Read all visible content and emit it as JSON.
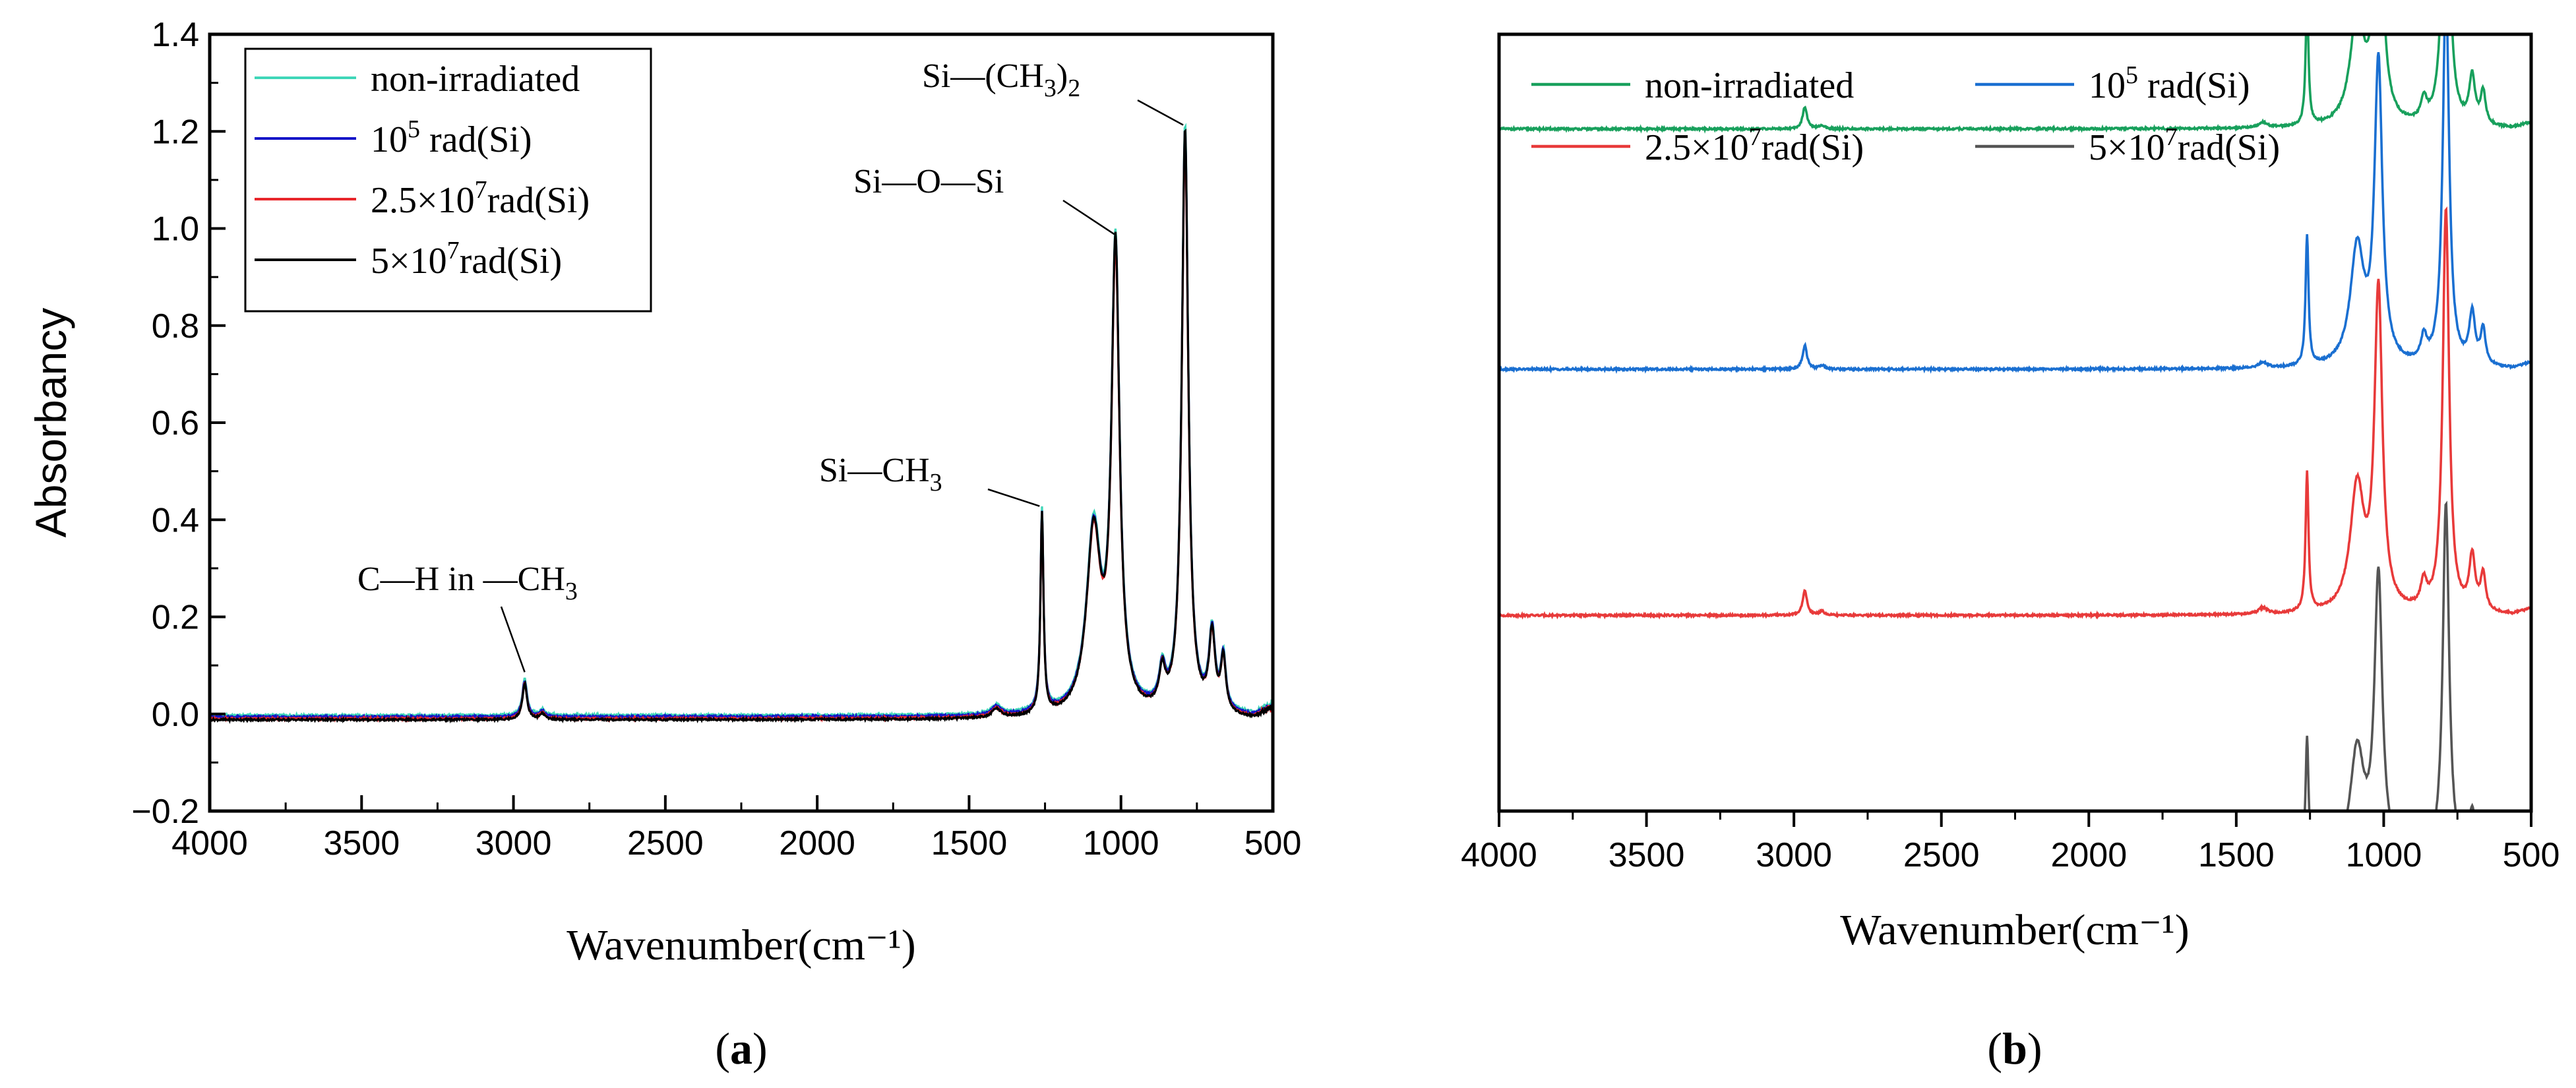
{
  "chart_data": [
    {
      "panel": "a",
      "type": "line",
      "ylabel": "Absorbancy",
      "xlabel": "Wavenumber(cm⁻¹)",
      "xlim": [
        4000,
        500
      ],
      "ylim": [
        -0.2,
        1.4
      ],
      "xticks": [
        4000,
        3500,
        3000,
        2500,
        2000,
        1500,
        1000,
        500
      ],
      "xtick_labels": [
        "4000",
        "3500",
        "3000",
        "2500",
        "2000",
        "1500",
        "1000",
        "500"
      ],
      "yticks": [
        -0.2,
        0.0,
        0.2,
        0.4,
        0.6,
        0.8,
        1.0,
        1.2,
        1.4
      ],
      "ytick_labels": [
        "−0.2",
        "0.0",
        "0.2",
        "0.4",
        "0.6",
        "0.8",
        "1.0",
        "1.2",
        "1.4"
      ],
      "legend_position": "top-left",
      "series": [
        {
          "name": "non-irradiated",
          "name_parts": [
            "non-irradiated",
            "",
            ""
          ],
          "color": "#3fd6b8",
          "baseline": -0.003,
          "scale": 1.0,
          "drift": 0.0
        },
        {
          "name": "10^5 rad(Si)",
          "name_parts": [
            "10",
            "5",
            " rad(Si)"
          ],
          "color": "#1515c8",
          "baseline": -0.006,
          "scale": 0.99,
          "drift": 0.0
        },
        {
          "name": "2.5×10^7rad(Si)",
          "name_parts": [
            "2.5×10",
            "7",
            "rad(Si)"
          ],
          "color": "#e8262b",
          "baseline": -0.01,
          "scale": 0.98,
          "drift": 0.0
        },
        {
          "name": "5×10^7rad(Si)",
          "name_parts": [
            "5×10",
            "7",
            "rad(Si)"
          ],
          "color": "#000000",
          "baseline": -0.012,
          "scale": 1.0,
          "drift": 0.0
        }
      ],
      "peaks": [
        {
          "center": 2963,
          "height": 0.075,
          "width": 9
        },
        {
          "center": 2905,
          "height": 0.012,
          "width": 10
        },
        {
          "center": 1410,
          "height": 0.018,
          "width": 18
        },
        {
          "center": 1260,
          "height": 0.415,
          "width": 6
        },
        {
          "center": 1090,
          "height": 0.37,
          "width": 28
        },
        {
          "center": 1018,
          "height": 0.95,
          "width": 16
        },
        {
          "center": 864,
          "height": 0.075,
          "width": 12
        },
        {
          "center": 789,
          "height": 1.205,
          "width": 13
        },
        {
          "center": 700,
          "height": 0.16,
          "width": 12
        },
        {
          "center": 663,
          "height": 0.11,
          "width": 10
        }
      ],
      "annotations": [
        {
          "text_parts": [
            "C—H in —CH",
            "3",
            ""
          ],
          "target": [
            2963,
            0.078
          ]
        },
        {
          "text_parts": [
            "Si—CH",
            "3",
            ""
          ],
          "target": [
            1268,
            0.42
          ]
        },
        {
          "text_parts": [
            "Si—O—Si",
            "",
            ""
          ],
          "target": [
            1022,
            0.98
          ]
        },
        {
          "text_parts": [
            "Si—(CH",
            "3",
            ")",
            "2"
          ],
          "target": [
            795,
            1.205
          ]
        }
      ],
      "panel_label": "a"
    },
    {
      "panel": "b",
      "type": "line",
      "xlabel": "Wavenumber(cm⁻¹)",
      "xlim": [
        4000,
        500
      ],
      "xticks": [
        4000,
        3500,
        3000,
        2500,
        2000,
        1500,
        1000,
        500
      ],
      "xtick_labels": [
        "4000",
        "3500",
        "3000",
        "2500",
        "2000",
        "1500",
        "1000",
        "500"
      ],
      "y_axis_shown": false,
      "stacked_offsets": true,
      "ylim": [
        -0.2,
        1.4
      ],
      "legend_position": "top",
      "series": [
        {
          "name": "non-irradiated",
          "name_parts": [
            "non-irradiated",
            "",
            ""
          ],
          "color": "#18a05c",
          "offset": 1.205,
          "scale": 0.61
        },
        {
          "name": "10^5 rad(Si)",
          "name_parts": [
            "10",
            "5",
            " rad(Si)"
          ],
          "color": "#1a6fd1",
          "offset": 0.71,
          "scale": 0.65
        },
        {
          "name": "2.5×10^7rad(Si)",
          "name_parts": [
            "2.5×10",
            "7",
            "rad(Si)"
          ],
          "color": "#e83a3a",
          "offset": 0.203,
          "scale": 0.69
        },
        {
          "name": "5×10^7rad(Si)",
          "name_parts": [
            "5×10",
            "7",
            "rad(Si)"
          ],
          "color": "#555555",
          "offset": -0.308,
          "scale": 0.61
        }
      ],
      "panel_label": "b"
    }
  ]
}
